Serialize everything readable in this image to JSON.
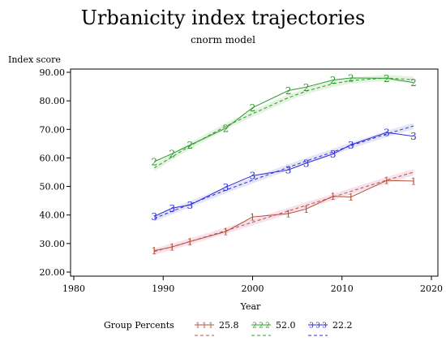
{
  "chart_data": {
    "type": "line",
    "title": "Urbanicity index trajectories",
    "subtitle": "cnorm model",
    "xlabel": "Year",
    "ylabel": "Index score",
    "xlim": [
      1980,
      2020
    ],
    "ylim": [
      20,
      90
    ],
    "xticks": [
      "1980",
      "1990",
      "2000",
      "2010",
      "2020"
    ],
    "yticks": [
      "20.00",
      "30.00",
      "40.00",
      "50.00",
      "60.00",
      "70.00",
      "80.00",
      "90.00"
    ],
    "grid": false,
    "legend": {
      "title": "Group Percents",
      "position": "bottom"
    },
    "x": [
      1989,
      1991,
      1993,
      1997,
      2000,
      2004,
      2006,
      2009,
      2011,
      2015,
      2018
    ],
    "series": [
      {
        "name": "25.8",
        "marker": "1",
        "color": "#b5553a",
        "band_color": "#f6d6e6",
        "values": [
          27.5,
          28.8,
          30.7,
          34.2,
          39.3,
          40.5,
          42.1,
          46.6,
          46.3,
          52.1,
          51.9
        ],
        "predicted": [
          27.2,
          28.9,
          30.7,
          34.5,
          37.5,
          41.4,
          43.4,
          46.3,
          48.3,
          52.2,
          55.0
        ]
      },
      {
        "name": "52.0",
        "marker": "2",
        "color": "#2e9a2e",
        "band_color": "#dbeed6",
        "values": [
          58.7,
          61.5,
          64.5,
          70.4,
          77.6,
          83.6,
          84.8,
          87.3,
          88.0,
          87.9,
          86.4
        ],
        "predicted": [
          56.5,
          60.4,
          64.2,
          71.1,
          75.5,
          81.1,
          83.4,
          86.0,
          87.1,
          88.0,
          87.4
        ]
      },
      {
        "name": "22.2",
        "marker": "3",
        "color": "#2b2bdc",
        "band_color": "#dcdcf6",
        "values": [
          39.5,
          42.4,
          43.5,
          49.8,
          53.8,
          55.8,
          58.2,
          61.4,
          64.6,
          68.9,
          67.6
        ],
        "predicted": [
          38.8,
          41.3,
          43.8,
          48.7,
          52.2,
          56.7,
          58.9,
          62.1,
          64.3,
          68.4,
          71.2
        ]
      }
    ]
  }
}
